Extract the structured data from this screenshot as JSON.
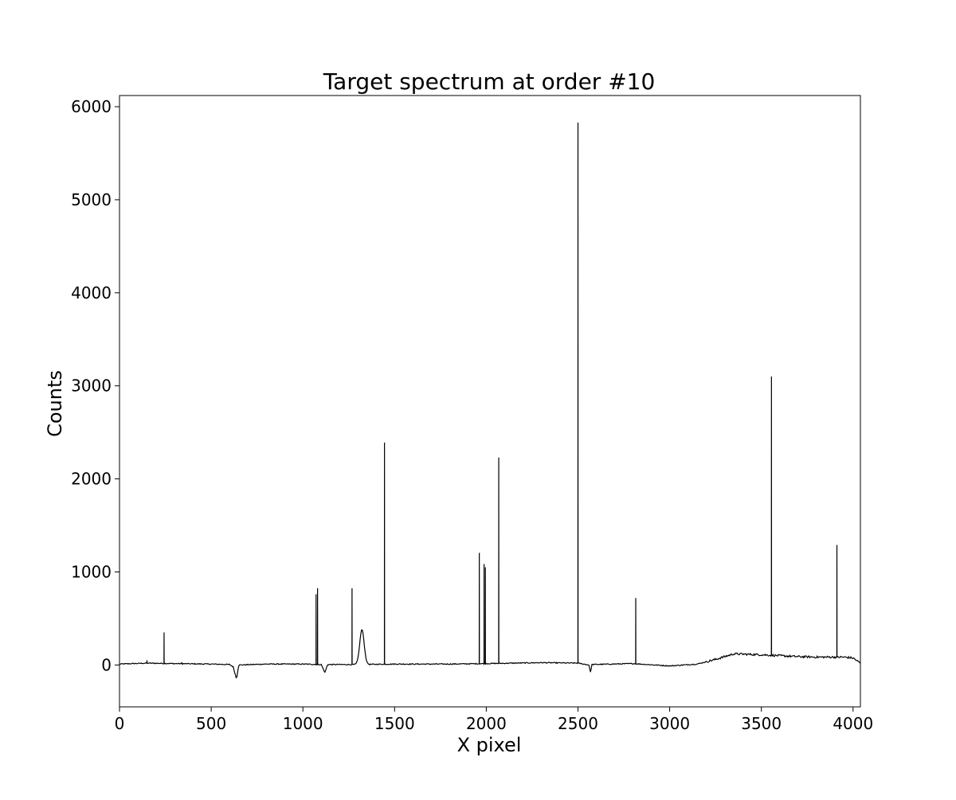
{
  "chart_data": {
    "type": "line",
    "title": "Target spectrum at order #10",
    "xlabel": "X pixel",
    "ylabel": "Counts",
    "xlim": [
      0,
      4040
    ],
    "ylim": [
      -450,
      6120
    ],
    "xticks": [
      0,
      500,
      1000,
      1500,
      2000,
      2500,
      3000,
      3500,
      4000
    ],
    "yticks": [
      0,
      1000,
      2000,
      3000,
      4000,
      5000,
      6000
    ],
    "grid": false,
    "line_color": "#000000",
    "baseline": [
      [
        0,
        10
      ],
      [
        150,
        20
      ],
      [
        300,
        15
      ],
      [
        500,
        10
      ],
      [
        600,
        5
      ],
      [
        620,
        -20
      ],
      [
        638,
        -150
      ],
      [
        650,
        0
      ],
      [
        800,
        10
      ],
      [
        1000,
        10
      ],
      [
        1100,
        5
      ],
      [
        1120,
        -80
      ],
      [
        1135,
        5
      ],
      [
        1300,
        5
      ],
      [
        1500,
        10
      ],
      [
        1800,
        10
      ],
      [
        2000,
        15
      ],
      [
        2300,
        25
      ],
      [
        2500,
        20
      ],
      [
        2560,
        0
      ],
      [
        2568,
        -80
      ],
      [
        2576,
        5
      ],
      [
        2800,
        15
      ],
      [
        3000,
        -10
      ],
      [
        3150,
        10
      ],
      [
        3250,
        60
      ],
      [
        3350,
        120
      ],
      [
        3500,
        110
      ],
      [
        3700,
        90
      ],
      [
        3800,
        85
      ],
      [
        3950,
        85
      ],
      [
        4000,
        75
      ],
      [
        4040,
        20
      ]
    ],
    "emission_lines": [
      {
        "x": 150,
        "y": 50
      },
      {
        "x": 243,
        "y": 350
      },
      {
        "x": 340,
        "y": 30
      },
      {
        "x": 1072,
        "y": 760
      },
      {
        "x": 1080,
        "y": 825
      },
      {
        "x": 1268,
        "y": 825
      },
      {
        "x": 1445,
        "y": 2390
      },
      {
        "x": 1962,
        "y": 1205
      },
      {
        "x": 1988,
        "y": 1085
      },
      {
        "x": 1995,
        "y": 1050
      },
      {
        "x": 2068,
        "y": 2230
      },
      {
        "x": 2500,
        "y": 5830
      },
      {
        "x": 2815,
        "y": 720
      },
      {
        "x": 3555,
        "y": 3100
      },
      {
        "x": 3912,
        "y": 1290
      }
    ],
    "broad_feature": {
      "center": 1322,
      "peak": 375
    }
  }
}
